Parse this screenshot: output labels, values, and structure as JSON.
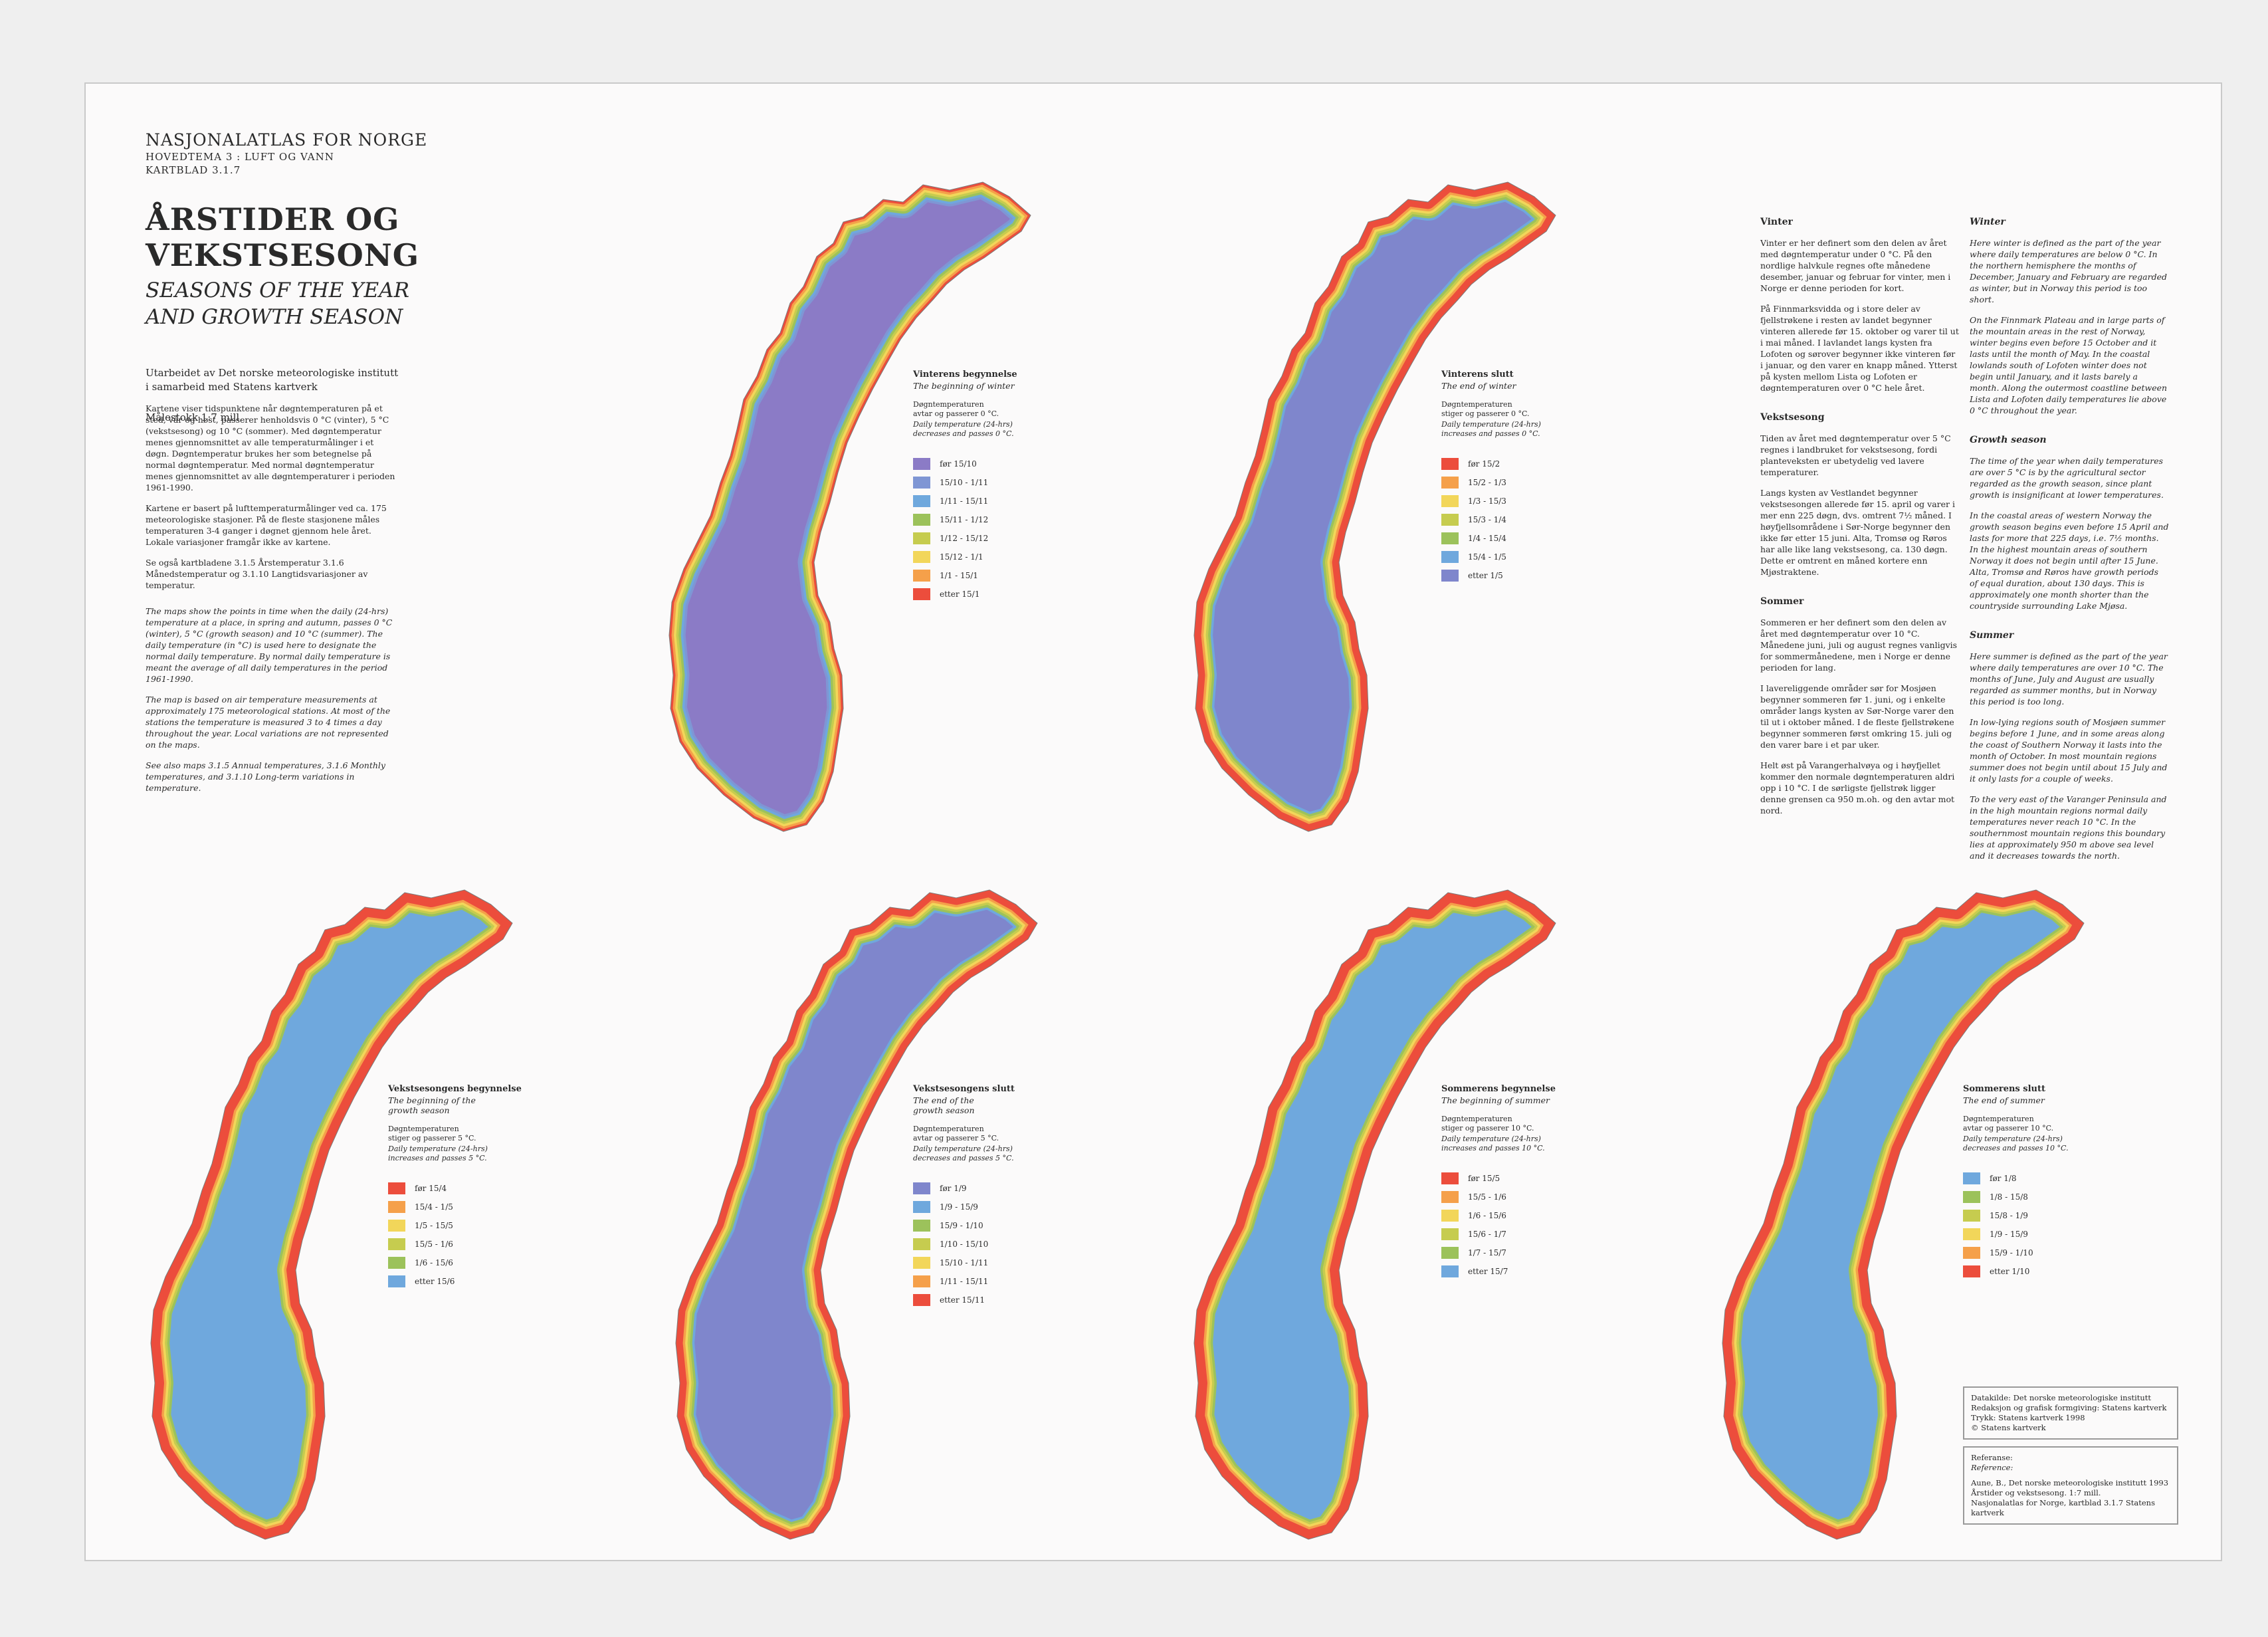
{
  "header": {
    "atlas": "NASJONALATLAS FOR NORGE",
    "theme": "HOVEDTEMA 3 : LUFT OG VANN",
    "sheet": "KARTBLAD 3.1.7",
    "title": "ÅRSTIDER OG VEKSTSESONG",
    "subtitle": "SEASONS OF THE YEAR\nAND GROWTH SEASON",
    "org": "Utarbeidet av Det norske meteorologiske institutt\ni samarbeid med Statens kartverk",
    "scale": "Målestokk 1:7 mill."
  },
  "intro": {
    "no1": "Kartene viser tidspunktene når døgntemperaturen på et sted, vår og høst, passerer henholdsvis 0 °C (vinter), 5 °C (vekstsesong) og 10 °C (sommer). Med døgntemperatur menes gjennomsnittet av alle temperaturmålinger i et døgn. Døgntemperatur brukes her som betegnelse på normal døgntemperatur. Med normal døgntemperatur menes gjennomsnittet av alle døgntemperaturer i perioden 1961-1990.",
    "no2": "Kartene er basert på lufttemperaturmålinger ved ca. 175 meteorologiske stasjoner. På de fleste stasjonene måles temperaturen 3-4 ganger i døgnet gjennom hele året. Lokale variasjoner framgår ikke av kartene.",
    "no3": "Se også kartbladene 3.1.5 Årstemperatur 3.1.6 Månedstemperatur og 3.1.10 Langtidsvariasjoner av temperatur.",
    "en1": "The maps show the points in time when the daily (24-hrs) temperature at a place, in spring and autumn, passes 0 °C (winter), 5 °C (growth season) and 10 °C (summer). The daily temperature (in °C) is used here to designate the normal daily temperature. By normal daily temperature is meant the average of all daily temperatures in the period 1961-1990.",
    "en2": "The map is based on air temperature measurements at approximately 175 meteorological stations. At most of the stations the temperature is measured 3 to 4 times a day throughout the year. Local variations are not represented on the maps.",
    "en3": "See also maps 3.1.5 Annual temperatures, 3.1.6 Monthly temperatures, and 3.1.10 Long-term variations in temperature."
  },
  "text_no": {
    "h1": "Vinter",
    "p1": "Vinter er her definert som den delen av året med døgntemperatur under 0 °C. På den nordlige halvkule regnes ofte månedene desember, januar og februar for vinter, men i Norge er denne perioden for kort.",
    "p2": "På Finnmarksvidda og i store deler av fjellstrøkene i resten av landet begynner vinteren allerede før 15. oktober og varer til ut i mai måned. I lavlandet langs kysten fra Lofoten og sørover begynner ikke vinteren før i januar, og den varer en knapp måned. Ytterst på kysten mellom Lista og Lofoten er døgntemperaturen over 0 °C hele året.",
    "h2": "Vekstsesong",
    "p3": "Tiden av året med døgntemperatur over 5 °C regnes i landbruket for vekstsesong, fordi planteveksten er ubetydelig ved lavere temperaturer.",
    "p4": "Langs kysten av Vestlandet begynner vekstsesongen allerede før 15. april og varer i mer enn 225 døgn, dvs. omtrent 7½ måned. I høyfjellsområdene i Sør-Norge begynner den ikke før etter 15 juni. Alta, Tromsø og Røros har alle like lang vekstsesong, ca. 130 døgn. Dette er omtrent en måned kortere enn Mjøstraktene.",
    "h3": "Sommer",
    "p5": "Sommeren er her definert som den delen av året med døgntemperatur over 10 °C. Månedene juni, juli og august regnes vanligvis for sommermånedene, men i Norge er denne perioden for lang.",
    "p6": "I lavereliggende områder sør for Mosjøen begynner sommeren før 1. juni, og i enkelte områder langs kysten av Sør-Norge varer den til ut i oktober måned. I de fleste fjellstrøkene begynner sommeren først omkring 15. juli og den varer bare i et par uker.",
    "p7": "Helt øst på Varangerhalvøya og i høyfjellet kommer den normale døgntemperaturen aldri opp i 10 °C. I de sørligste fjellstrøk ligger denne grensen ca 950 m.oh. og den avtar mot nord."
  },
  "text_en": {
    "h1": "Winter",
    "p1": "Here winter is defined as the part of the year where daily temperatures are below 0 °C. In the northern hemisphere the months of December, January and February are regarded as winter, but in Norway this period is too short.",
    "p2": "On the Finnmark Plateau and in large parts of the mountain areas in the rest of Norway, winter begins even before 15 October and it lasts until the month of May. In the coastal lowlands south of Lofoten winter does not begin until January, and it lasts barely a month. Along the outermost coastline between Lista and Lofoten daily temperatures lie above 0 °C throughout the year.",
    "h2": "Growth season",
    "p3": "The time of the year when daily temperatures are over 5 °C is by the agricultural sector regarded as the growth season, since plant growth is insignificant at lower temperatures.",
    "p4": "In the coastal areas of western Norway the growth season begins even before 15 April and lasts for more that 225 days, i.e. 7½ months. In the highest mountain areas of southern Norway it does not begin until after 15 June. Alta, Tromsø and Røros have growth periods of equal duration, about 130 days. This is approximately one month shorter than the countryside surrounding Lake Mjøsa.",
    "h3": "Summer",
    "p5": "Here summer is defined as the part of the year where daily temperatures are over 10 °C. The months of June, July and August are usually regarded as summer months, but in Norway this period is too long.",
    "p6": "In low-lying regions south of Mosjøen summer begins before 1 June, and in some areas along the coast of Southern Norway it lasts into the month of October. In most mountain regions summer does not begin until about 15 July and it only lasts for a couple of weeks.",
    "p7": "To the very east of the Varanger Peninsula and in the high mountain regions normal daily temperatures never reach 10 °C. In the southernmost mountain regions this boundary lies at approximately 950 m above sea level and it decreases towards the north."
  },
  "maps": [
    {
      "title": "Vinterens begynnelse",
      "subtitle": "The beginning of winter",
      "desc_no": "Døgntemperaturen\navtar og passerer 0 °C.",
      "desc_en": "Daily temperature (24-hrs)\ndecreases and passes 0 °C.",
      "legend": [
        {
          "label": "før 15/10",
          "color": "#8b7bc6"
        },
        {
          "label": "15/10 - 1/11",
          "color": "#7f96d4"
        },
        {
          "label": "1/11 - 15/11",
          "color": "#6fa8dd"
        },
        {
          "label": "15/11 - 1/12",
          "color": "#9cc25b"
        },
        {
          "label": "1/12 - 15/12",
          "color": "#c6cc4f"
        },
        {
          "label": "15/12 - 1/1",
          "color": "#f2d65a"
        },
        {
          "label": "1/1 - 15/1",
          "color": "#f5a04a"
        },
        {
          "label": "etter 15/1",
          "color": "#ec4d3c"
        }
      ]
    },
    {
      "title": "Vinterens slutt",
      "subtitle": "The end of winter",
      "desc_no": "Døgntemperaturen\nstiger og passerer 0 °C.",
      "desc_en": "Daily temperature (24-hrs)\nincreases and passes 0 °C.",
      "legend": [
        {
          "label": "før 15/2",
          "color": "#ec4d3c"
        },
        {
          "label": "15/2 - 1/3",
          "color": "#f5a04a"
        },
        {
          "label": "1/3 - 15/3",
          "color": "#f2d65a"
        },
        {
          "label": "15/3 - 1/4",
          "color": "#c6cc4f"
        },
        {
          "label": "1/4 - 15/4",
          "color": "#9cc25b"
        },
        {
          "label": "15/4 - 1/5",
          "color": "#6fa8dd"
        },
        {
          "label": "etter 1/5",
          "color": "#7f86cc"
        }
      ]
    },
    {
      "title": "Vekstsesongens begynnelse",
      "subtitle": "The beginning of the\ngrowth season",
      "desc_no": "Døgntemperaturen\nstiger og passerer 5 °C.",
      "desc_en": "Daily temperature (24-hrs)\nincreases and passes 5 °C.",
      "legend": [
        {
          "label": "før 15/4",
          "color": "#ec4d3c"
        },
        {
          "label": "15/4 - 1/5",
          "color": "#f5a04a"
        },
        {
          "label": "1/5 - 15/5",
          "color": "#f2d65a"
        },
        {
          "label": "15/5 - 1/6",
          "color": "#c6cc4f"
        },
        {
          "label": "1/6 - 15/6",
          "color": "#9cc25b"
        },
        {
          "label": "etter 15/6",
          "color": "#6fa8dd"
        }
      ]
    },
    {
      "title": "Vekstsesongens slutt",
      "subtitle": "The end of the\ngrowth season",
      "desc_no": "Døgntemperaturen\navtar og passerer 5 °C.",
      "desc_en": "Daily temperature (24-hrs)\ndecreases and passes 5 °C.",
      "legend": [
        {
          "label": "før 1/9",
          "color": "#7f86cc"
        },
        {
          "label": "1/9 - 15/9",
          "color": "#6fa8dd"
        },
        {
          "label": "15/9 - 1/10",
          "color": "#9cc25b"
        },
        {
          "label": "1/10 - 15/10",
          "color": "#c6cc4f"
        },
        {
          "label": "15/10 - 1/11",
          "color": "#f2d65a"
        },
        {
          "label": "1/11 - 15/11",
          "color": "#f5a04a"
        },
        {
          "label": "etter 15/11",
          "color": "#ec4d3c"
        }
      ]
    },
    {
      "title": "Sommerens begynnelse",
      "subtitle": "The beginning of summer",
      "desc_no": "Døgntemperaturen\nstiger og passerer 10 °C.",
      "desc_en": "Daily temperature (24-hrs)\nincreases and passes 10 °C.",
      "legend": [
        {
          "label": "før 15/5",
          "color": "#ec4d3c"
        },
        {
          "label": "15/5 - 1/6",
          "color": "#f5a04a"
        },
        {
          "label": "1/6 - 15/6",
          "color": "#f2d65a"
        },
        {
          "label": "15/6 - 1/7",
          "color": "#c6cc4f"
        },
        {
          "label": "1/7 - 15/7",
          "color": "#9cc25b"
        },
        {
          "label": "etter 15/7",
          "color": "#6fa8dd"
        }
      ]
    },
    {
      "title": "Sommerens slutt",
      "subtitle": "The end of summer",
      "desc_no": "Døgntemperaturen\navtar og passerer 10 °C.",
      "desc_en": "Daily temperature (24-hrs)\ndecreases and passes 10 °C.",
      "legend": [
        {
          "label": "før 1/8",
          "color": "#6fa8dd"
        },
        {
          "label": "1/8 - 15/8",
          "color": "#9cc25b"
        },
        {
          "label": "15/8 - 1/9",
          "color": "#c6cc4f"
        },
        {
          "label": "1/9 - 15/9",
          "color": "#f2d65a"
        },
        {
          "label": "15/9 - 1/10",
          "color": "#f5a04a"
        },
        {
          "label": "etter 1/10",
          "color": "#ec4d3c"
        }
      ]
    }
  ],
  "source": {
    "l1": "Datakilde: Det norske meteorologiske institutt",
    "l2": "Redaksjon og grafisk formgiving: Statens kartverk",
    "l3": "Trykk: Statens kartverk 1998",
    "l4": "© Statens kartverk"
  },
  "reference": {
    "l1": "Referanse:",
    "l2": "Reference:",
    "l3": "Aune, B., Det norske meteorologiske institutt 1993",
    "l4": "Årstider og vekstsesong. 1:7 mill.",
    "l5": "Nasjonalatlas for Norge, kartblad 3.1.7 Statens kartverk"
  }
}
